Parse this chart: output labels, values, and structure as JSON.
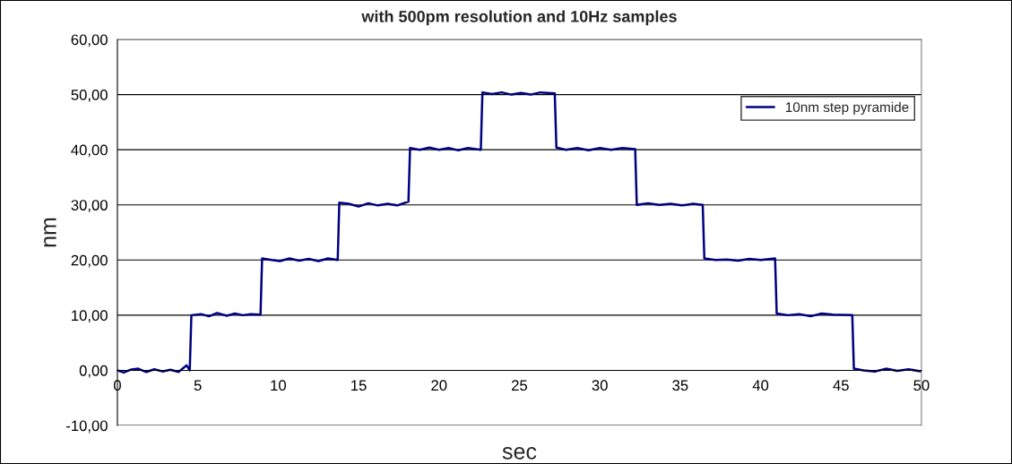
{
  "chart_data": {
    "type": "line",
    "title": "with 500pm resolution and 10Hz samples",
    "xlabel": "sec",
    "ylabel": "nm",
    "xlim": [
      0,
      50
    ],
    "xticks": [
      0,
      5,
      10,
      15,
      20,
      25,
      30,
      35,
      40,
      45,
      50
    ],
    "ylim": [
      -10,
      60
    ],
    "yticks": [
      {
        "value": -10,
        "label": "-10,00"
      },
      {
        "value": 0,
        "label": "0,00"
      },
      {
        "value": 10,
        "label": "10,00"
      },
      {
        "value": 20,
        "label": "20,00"
      },
      {
        "value": 30,
        "label": "30,00"
      },
      {
        "value": 40,
        "label": "40,00"
      },
      {
        "value": 50,
        "label": "50,00"
      },
      {
        "value": 60,
        "label": "60,00"
      }
    ],
    "grid": "y",
    "legend": "top right",
    "marker": "none",
    "line_style": "solid",
    "series": [
      {
        "name": "10nm step pyramide",
        "color": "#000080",
        "x": [
          0,
          0.4,
          0.8,
          1.3,
          1.8,
          2.3,
          2.8,
          3.3,
          3.8,
          4.3,
          4.5,
          4.6,
          5.2,
          5.7,
          6.2,
          6.8,
          7.3,
          7.8,
          8.3,
          8.9,
          9.0,
          9.6,
          10.1,
          10.7,
          11.3,
          11.9,
          12.5,
          13.1,
          13.7,
          13.8,
          14.4,
          15.0,
          15.6,
          16.2,
          16.8,
          17.4,
          18.1,
          18.2,
          18.8,
          19.4,
          20.0,
          20.6,
          21.2,
          21.8,
          22.6,
          22.7,
          23.3,
          23.9,
          24.5,
          25.1,
          25.7,
          26.3,
          27.2,
          27.3,
          27.9,
          28.6,
          29.3,
          30.0,
          30.7,
          31.4,
          32.2,
          32.3,
          33.0,
          33.7,
          34.4,
          35.1,
          35.8,
          36.4,
          36.5,
          37.2,
          37.9,
          38.6,
          39.3,
          40.0,
          40.9,
          41.0,
          41.7,
          42.4,
          43.1,
          43.8,
          44.5,
          45.7,
          45.8,
          46.4,
          47.1,
          47.8,
          48.5,
          49.2,
          50
        ],
        "values": [
          0.0,
          -0.4,
          0.1,
          0.3,
          -0.3,
          0.2,
          -0.2,
          0.1,
          -0.3,
          0.9,
          0.0,
          10.0,
          10.2,
          9.8,
          10.4,
          9.9,
          10.3,
          10.0,
          10.2,
          10.1,
          20.3,
          20.0,
          19.8,
          20.3,
          19.9,
          20.2,
          19.8,
          20.3,
          20.0,
          30.4,
          30.2,
          29.7,
          30.3,
          29.9,
          30.2,
          29.9,
          30.6,
          40.3,
          40.0,
          40.4,
          40.0,
          40.3,
          39.9,
          40.3,
          40.0,
          50.4,
          50.1,
          50.4,
          50.0,
          50.3,
          50.0,
          50.4,
          50.2,
          40.4,
          40.0,
          40.3,
          39.9,
          40.3,
          40.0,
          40.3,
          40.1,
          30.0,
          30.3,
          30.0,
          30.2,
          29.9,
          30.2,
          30.0,
          20.3,
          20.0,
          20.1,
          19.9,
          20.2,
          20.0,
          20.3,
          10.3,
          10.0,
          10.2,
          9.8,
          10.3,
          10.1,
          10.0,
          0.3,
          0.0,
          -0.2,
          0.3,
          -0.1,
          0.2,
          -0.2
        ]
      }
    ]
  }
}
